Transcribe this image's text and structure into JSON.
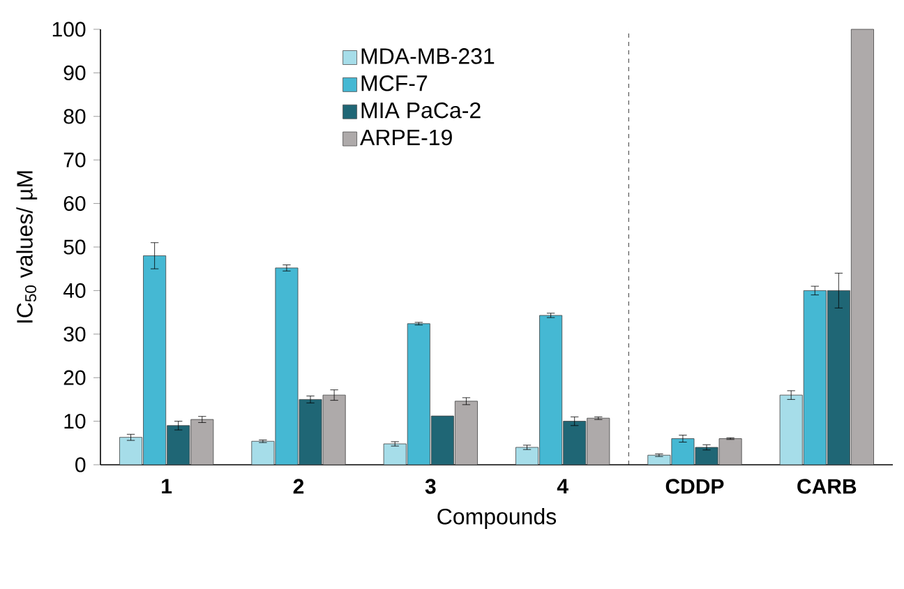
{
  "chart_data": {
    "type": "bar",
    "xlabel": "Compounds",
    "ylabel": "IC$_{50}$ values/ µM",
    "categories": [
      "1",
      "2",
      "3",
      "4",
      "CDDP",
      "CARB"
    ],
    "series": [
      {
        "name": "MDA-MB-231",
        "color": "#a6dde9",
        "values": [
          6.3,
          5.4,
          4.8,
          4.0,
          2.2,
          16
        ],
        "errors": [
          0.7,
          0.3,
          0.5,
          0.5,
          0.3,
          1
        ]
      },
      {
        "name": "MCF-7",
        "color": "#45b8d3",
        "values": [
          48,
          45.2,
          32.4,
          34.3,
          6,
          40
        ],
        "errors": [
          3,
          0.7,
          0.3,
          0.5,
          0.8,
          1
        ]
      },
      {
        "name": "MIA PaCa-2",
        "color": "#1f6675",
        "values": [
          9,
          15,
          11.2,
          10,
          4,
          40
        ],
        "errors": [
          1,
          0.8,
          null,
          1,
          0.6,
          4
        ]
      },
      {
        "name": "ARPE-19",
        "color": "#aeaaaa",
        "values": [
          10.4,
          16,
          14.6,
          10.7,
          6,
          100
        ],
        "errors": [
          0.7,
          1.2,
          0.8,
          0.3,
          0.2,
          null
        ]
      }
    ],
    "ylim": [
      0,
      100
    ],
    "yticks": [
      0,
      10,
      20,
      30,
      40,
      50,
      60,
      70,
      80,
      90,
      100
    ],
    "grid": false,
    "legend": "top"
  }
}
